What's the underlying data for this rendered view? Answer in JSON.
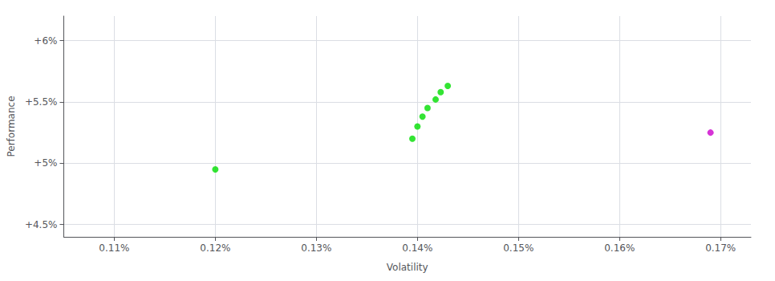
{
  "chart_data": {
    "type": "scatter",
    "xlabel": "Volatility",
    "ylabel": "Performance",
    "series": [
      {
        "color": "#00dd00",
        "x": [
          0.12,
          0.1395,
          0.14,
          0.1405,
          0.141,
          0.1418,
          0.1423,
          0.143
        ],
        "values": [
          4.95,
          5.2,
          5.3,
          5.38,
          5.45,
          5.52,
          5.58,
          5.63
        ]
      },
      {
        "color": "#cc00cc",
        "x": [
          0.169
        ],
        "values": [
          5.25
        ]
      }
    ],
    "xlim": [
      0.105,
      0.173
    ],
    "ylim": [
      4.4,
      6.2
    ],
    "xticks": [
      {
        "value": 0.11,
        "label": "0.11%"
      },
      {
        "value": 0.12,
        "label": "0.12%"
      },
      {
        "value": 0.13,
        "label": "0.13%"
      },
      {
        "value": 0.14,
        "label": "0.14%"
      },
      {
        "value": 0.15,
        "label": "0.15%"
      },
      {
        "value": 0.16,
        "label": "0.16%"
      },
      {
        "value": 0.17,
        "label": "0.17%"
      }
    ],
    "yticks": [
      {
        "value": 4.5,
        "label": "+4.5%"
      },
      {
        "value": 5.0,
        "label": "+5%"
      },
      {
        "value": 5.5,
        "label": "+5.5%"
      },
      {
        "value": 6.0,
        "label": "+6%"
      }
    ],
    "grid": true
  }
}
